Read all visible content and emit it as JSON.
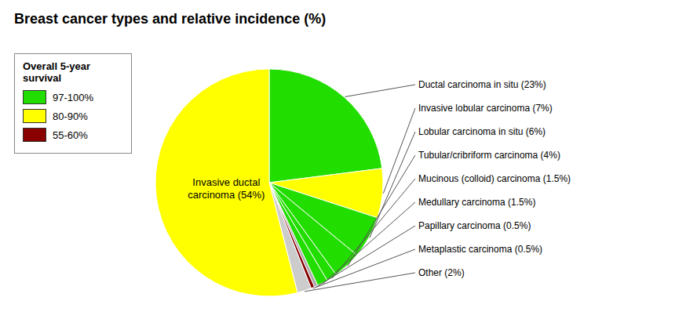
{
  "chart_data": {
    "type": "pie",
    "title": "Breast cancer types and relative incidence (%)",
    "categories": [
      "Ductal carcinoma in situ (23%)",
      "Invasive lobular carcinoma (7%)",
      "Lobular carcinoma in situ (6%)",
      "Tubular/cribriform carcinoma (4%)",
      "Mucinous (colloid) carcinoma (1.5%)",
      "Medullary carcinoma (1.5%)",
      "Papillary carcinoma (0.5%)",
      "Metaplastic carcinoma (0.5%)",
      "Other (2%)",
      "Invasive ductal\ncarcinoma (54%)"
    ],
    "values": [
      23,
      7,
      6,
      4,
      1.5,
      1.5,
      0.5,
      0.5,
      2,
      54
    ],
    "colors": [
      "#22dd00",
      "#ffff00",
      "#22dd00",
      "#22dd00",
      "#22dd00",
      "#22dd00",
      "#aaaaaa",
      "#880000",
      "#cccccc",
      "#ffff00"
    ],
    "legend": "upper left",
    "legend_title": "Overall 5-year\nsurvival",
    "legend_items": [
      {
        "name": "97-100%",
        "color": "#22dd00"
      },
      {
        "name": "80-90%",
        "color": "#ffff00"
      },
      {
        "name": "55-60%",
        "color": "#880000"
      }
    ]
  }
}
